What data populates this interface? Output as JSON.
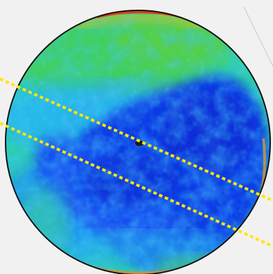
{
  "image": {
    "subject": "circular-heatmap-disc",
    "colors": {
      "background": "#f1f1f1",
      "disc_rim": "#111111",
      "heat_low": "#0a2bd8",
      "heat_mid": "#29c7df",
      "heat_high": "#35c94a",
      "heat_peak": "#e02a1a",
      "guide_line": "#ffe600"
    },
    "guide_lines": [
      {
        "name": "upper-dashed-guide"
      },
      {
        "name": "lower-dashed-guide"
      }
    ],
    "center_marker": {
      "name": "center-marker-icon"
    }
  }
}
